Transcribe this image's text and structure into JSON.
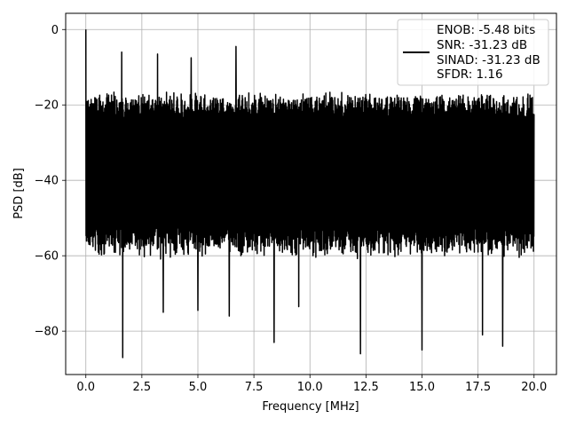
{
  "chart_data": {
    "type": "line",
    "title": "",
    "xlabel": "Frequency [MHz]",
    "ylabel": "PSD [dB]",
    "xlim": [
      -0.9,
      21.0
    ],
    "ylim": [
      -91.5,
      4.3
    ],
    "grid": true,
    "legend_placement": "top-right",
    "x_ticks": [
      0.0,
      2.5,
      5.0,
      7.5,
      10.0,
      12.5,
      15.0,
      17.5,
      20.0
    ],
    "x_tick_labels": [
      "0.0",
      "2.5",
      "5.0",
      "7.5",
      "10.0",
      "12.5",
      "15.0",
      "17.5",
      "20.0"
    ],
    "y_ticks": [
      0,
      -20,
      -40,
      -60,
      -80
    ],
    "y_tick_labels": [
      "0",
      "−20",
      "−40",
      "−60",
      "−80"
    ],
    "series": [
      {
        "name": "ENOB: -5.48 bits\nSNR: -31.23 dB\nSINAD: -31.23 dB\nSFDR: 1.16",
        "legend_lines": [
          "ENOB: -5.48 bits",
          "SNR: -31.23 dB",
          "SINAD: -31.23 dB",
          "SFDR: 1.16"
        ],
        "color": "#000000",
        "noise_floor_envelope": {
          "x": [
            0.0,
            20.0
          ],
          "upper_db": -16,
          "lower_db": -62
        },
        "peaks": {
          "x": [
            0.0,
            1.6,
            3.2,
            4.7,
            6.7
          ],
          "y": [
            0.0,
            -6.0,
            -6.5,
            -7.5,
            -4.5
          ]
        },
        "deep_dips": {
          "x": [
            1.65,
            3.45,
            5.0,
            6.4,
            8.4,
            9.5,
            12.25,
            15.0,
            17.7,
            18.6
          ],
          "y": [
            -87.0,
            -75.0,
            -74.5,
            -76.0,
            -83.0,
            -73.5,
            -86.0,
            -85.0,
            -81.0,
            -84.0
          ]
        }
      }
    ]
  }
}
